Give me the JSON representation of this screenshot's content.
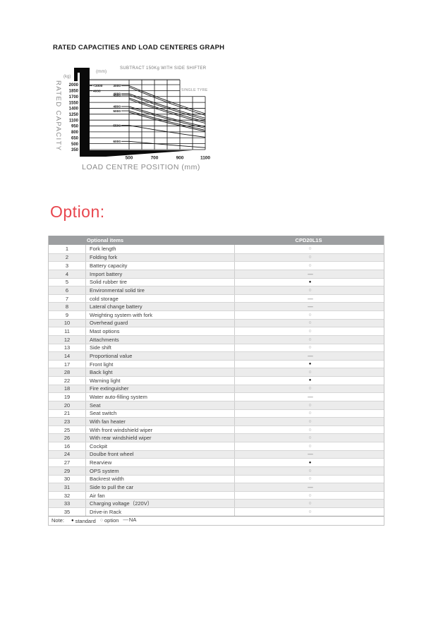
{
  "page": {
    "graph_title": "RATED CAPACITIES AND LOAD CENTERES GRAPH",
    "option_heading": "Option:",
    "accent_color": "#e8464e"
  },
  "chart_data": {
    "type": "line",
    "title": "RATED CAPACITIES AND LOAD CENTERES GRAPH",
    "annotation": "SUBTRACT 150Kg WITH SIDE SHIFTER",
    "single_tyre_label": "SINGLE TYRE",
    "xlabel": "LOAD CENTRE POSITION (mm)",
    "ylabel": "RATED CAPACITY",
    "y_unit": "(kg)",
    "x_unit": "(mm)",
    "xlim": [
      500,
      1100
    ],
    "ylim": [
      350,
      2000
    ],
    "x_ticks": [
      500,
      700,
      900,
      1100
    ],
    "x_grid": [
      500,
      600,
      700,
      800,
      900,
      1000,
      1100
    ],
    "y_ticks": [
      2000,
      1850,
      1700,
      1550,
      1400,
      1250,
      1100,
      950,
      800,
      650,
      500,
      350
    ],
    "grid": true,
    "left_labels": [
      {
        "text": "<3000",
        "capacity": 1975
      },
      {
        "text": "4000",
        "capacity": 1845
      }
    ],
    "series": [
      {
        "label": "3000",
        "points": [
          [
            500,
            1975
          ],
          [
            1100,
            1265
          ]
        ]
      },
      {
        "label": "",
        "points": [
          [
            500,
            1940
          ],
          [
            1100,
            1220
          ]
        ]
      },
      {
        "label": "4000",
        "points": [
          [
            500,
            1770
          ],
          [
            1100,
            1150
          ]
        ]
      },
      {
        "label": "4500",
        "points": [
          [
            500,
            1735
          ],
          [
            1100,
            1110
          ]
        ]
      },
      {
        "label": "",
        "points": [
          [
            500,
            1660
          ],
          [
            1100,
            1060
          ]
        ]
      },
      {
        "label": "",
        "points": [
          [
            500,
            1625
          ],
          [
            1100,
            1020
          ]
        ]
      },
      {
        "label": "4800",
        "points": [
          [
            500,
            1445
          ],
          [
            1100,
            930
          ]
        ]
      },
      {
        "label": "",
        "points": [
          [
            500,
            1410
          ],
          [
            1100,
            895
          ]
        ]
      },
      {
        "label": "5000",
        "points": [
          [
            500,
            1335
          ],
          [
            1100,
            845
          ]
        ]
      },
      {
        "label": "",
        "points": [
          [
            500,
            1300
          ],
          [
            1100,
            810
          ]
        ]
      },
      {
        "label": "5500",
        "points": [
          [
            500,
            965
          ],
          [
            1100,
            665
          ]
        ]
      },
      {
        "label": "6000",
        "points": [
          [
            500,
            560
          ],
          [
            1100,
            400
          ]
        ]
      }
    ]
  },
  "table": {
    "header": {
      "col_items": "Optional items",
      "col_model": "CPD20L1S"
    },
    "header_bg": "#9d9fa1",
    "row_alt_bg": "#ececec",
    "symbols": {
      "standard": "●",
      "option": "○",
      "na": "—"
    },
    "rows": [
      [
        "1",
        "Fork length",
        "option"
      ],
      [
        "2",
        "Folding fork",
        "option"
      ],
      [
        "3",
        "Battery capacity",
        "option"
      ],
      [
        "4",
        "Import battery",
        "na"
      ],
      [
        "5",
        "Solid rubber tire",
        "standard"
      ],
      [
        "6",
        "Environmental solid tire",
        "option"
      ],
      [
        "7",
        "cold storage",
        "na"
      ],
      [
        "8",
        "Lateral change battery",
        "na"
      ],
      [
        "9",
        "Weighting system with fork",
        "option"
      ],
      [
        "10",
        "Overhead guard",
        "option"
      ],
      [
        "11",
        "Mast options",
        "option"
      ],
      [
        "12",
        "Attachments",
        "option"
      ],
      [
        "13",
        "Side shift",
        "option"
      ],
      [
        "14",
        "Proportional value",
        "na"
      ],
      [
        "17",
        "Front light",
        "standard"
      ],
      [
        "28",
        "Back light",
        "option"
      ],
      [
        "22",
        "Warning light",
        "standard"
      ],
      [
        "18",
        "Fire extinguisher",
        "option"
      ],
      [
        "19",
        "Water auto-filling system",
        "na"
      ],
      [
        "20",
        "Seat",
        "option"
      ],
      [
        "21",
        "Seat switch",
        "option"
      ],
      [
        "23",
        "With fan heater",
        "option"
      ],
      [
        "25",
        "With front windshield wiper",
        "option"
      ],
      [
        "26",
        "With rear windshield wiper",
        "option"
      ],
      [
        "16",
        "Cockpit",
        "option"
      ],
      [
        "24",
        "Doulbe front wheel",
        "na"
      ],
      [
        "27",
        "Rearview",
        "standard"
      ],
      [
        "29",
        "OPS system",
        "option"
      ],
      [
        "30",
        "Backrest width",
        "option"
      ],
      [
        "31",
        "Side to pull the car",
        "na"
      ],
      [
        "32",
        "Air fan",
        "option"
      ],
      [
        "33",
        "Charging voltage（220V）",
        "option"
      ],
      [
        "35",
        "Drive-in Rack",
        "option"
      ]
    ],
    "note": {
      "label": "Note:",
      "legend": [
        {
          "symbol": "standard",
          "label": "standard"
        },
        {
          "symbol": "option",
          "label": "option"
        },
        {
          "symbol": "na",
          "label": "NA"
        }
      ]
    }
  }
}
